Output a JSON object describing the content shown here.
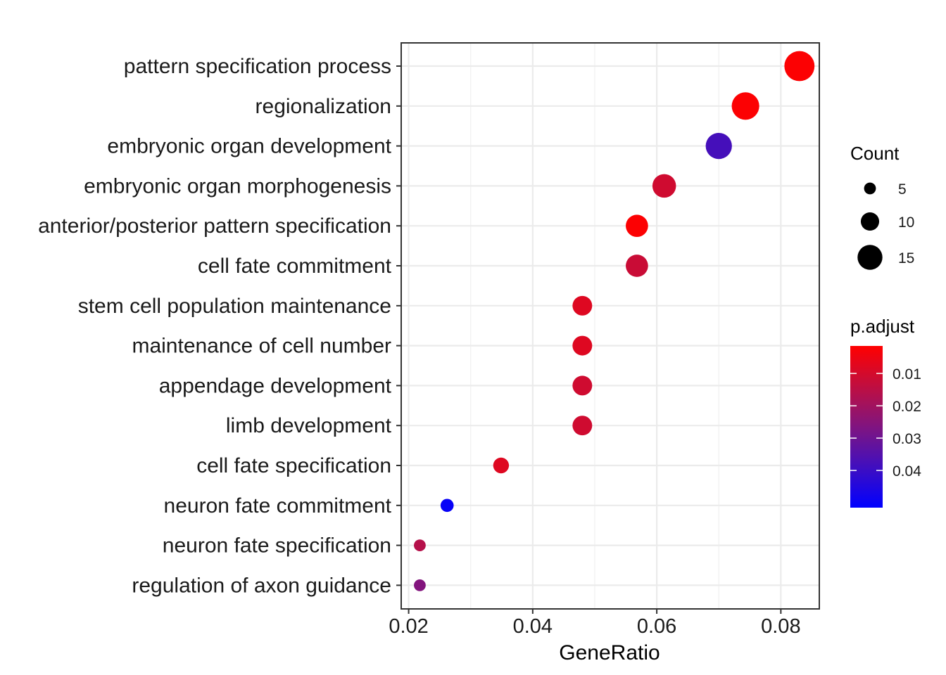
{
  "chart_data": {
    "type": "scatter",
    "title": "",
    "xlabel": "GeneRatio",
    "ylabel": "",
    "xlim": [
      0.0188,
      0.0862
    ],
    "xticks": [
      0.02,
      0.04,
      0.06,
      0.08
    ],
    "xtick_labels": [
      "0.02",
      "0.04",
      "0.06",
      "0.08"
    ],
    "grid": true,
    "points": [
      {
        "term": "pattern specification process",
        "gene_ratio": 0.083,
        "count": 19,
        "p_adjust": 0.002
      },
      {
        "term": "regionalization",
        "gene_ratio": 0.0743,
        "count": 17,
        "p_adjust": 0.002
      },
      {
        "term": "embryonic organ development",
        "gene_ratio": 0.07,
        "count": 16,
        "p_adjust": 0.038
      },
      {
        "term": "embryonic organ morphogenesis",
        "gene_ratio": 0.0612,
        "count": 14,
        "p_adjust": 0.011
      },
      {
        "term": "anterior/posterior pattern specification",
        "gene_ratio": 0.0568,
        "count": 13,
        "p_adjust": 0.002
      },
      {
        "term": "cell fate commitment",
        "gene_ratio": 0.0568,
        "count": 13,
        "p_adjust": 0.012
      },
      {
        "term": "stem cell population maintenance",
        "gene_ratio": 0.048,
        "count": 11,
        "p_adjust": 0.008
      },
      {
        "term": "maintenance of cell number",
        "gene_ratio": 0.048,
        "count": 11,
        "p_adjust": 0.008
      },
      {
        "term": "appendage development",
        "gene_ratio": 0.048,
        "count": 11,
        "p_adjust": 0.011
      },
      {
        "term": "limb development",
        "gene_ratio": 0.048,
        "count": 11,
        "p_adjust": 0.011
      },
      {
        "term": "cell fate specification",
        "gene_ratio": 0.0349,
        "count": 8,
        "p_adjust": 0.008
      },
      {
        "term": "neuron fate commitment",
        "gene_ratio": 0.0262,
        "count": 6,
        "p_adjust": 0.05
      },
      {
        "term": "neuron fate specification",
        "gene_ratio": 0.0218,
        "count": 5,
        "p_adjust": 0.016
      },
      {
        "term": "regulation of axon guidance",
        "gene_ratio": 0.0218,
        "count": 5,
        "p_adjust": 0.026
      }
    ],
    "size_legend": {
      "title": "Count",
      "entries": [
        {
          "label": "5",
          "value": 5
        },
        {
          "label": "10",
          "value": 10
        },
        {
          "label": "15",
          "value": 15
        }
      ]
    },
    "color_legend": {
      "title": "p.adjust",
      "low_color": "#0000ff",
      "high_color": "#ff0000",
      "range": [
        0.0015,
        0.0515
      ],
      "entries": [
        {
          "label": "0.01",
          "value": 0.01
        },
        {
          "label": "0.02",
          "value": 0.02
        },
        {
          "label": "0.03",
          "value": 0.03
        },
        {
          "label": "0.04",
          "value": 0.04
        }
      ]
    }
  }
}
